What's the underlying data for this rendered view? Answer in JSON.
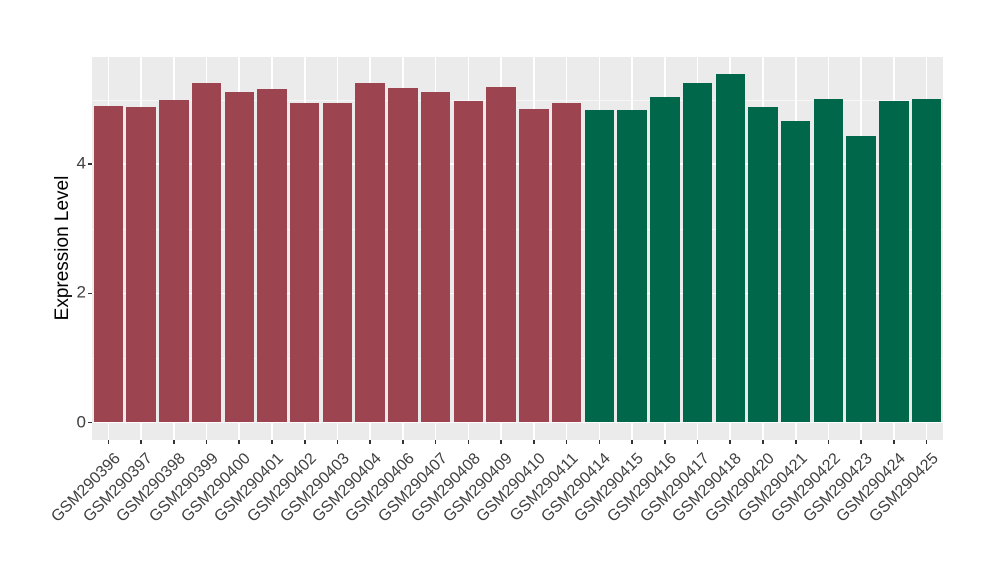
{
  "chart_data": {
    "type": "bar",
    "title": "",
    "xlabel": "",
    "ylabel": "Expression Level",
    "legend_position": "none",
    "grid": "on",
    "panel_background": "#EBEBEB",
    "gridline_color": "#FFFFFF",
    "axis_text_color": "#404040",
    "tick_mark_color": "#333333",
    "yticks": [
      0,
      2,
      4
    ],
    "ylim": [
      -0.28,
      5.66
    ],
    "bar_colors_used": [
      "#9C4450",
      "#00674B"
    ],
    "bars": [
      {
        "label": "GSM290396",
        "value": 4.9,
        "color": "#9C4450"
      },
      {
        "label": "GSM290397",
        "value": 4.88,
        "color": "#9C4450"
      },
      {
        "label": "GSM290398",
        "value": 4.99,
        "color": "#9C4450"
      },
      {
        "label": "GSM290399",
        "value": 5.25,
        "color": "#9C4450"
      },
      {
        "label": "GSM290400",
        "value": 5.12,
        "color": "#9C4450"
      },
      {
        "label": "GSM290401",
        "value": 5.16,
        "color": "#9C4450"
      },
      {
        "label": "GSM290402",
        "value": 4.95,
        "color": "#9C4450"
      },
      {
        "label": "GSM290403",
        "value": 4.95,
        "color": "#9C4450"
      },
      {
        "label": "GSM290404",
        "value": 5.25,
        "color": "#9C4450"
      },
      {
        "label": "GSM290406",
        "value": 5.18,
        "color": "#9C4450"
      },
      {
        "label": "GSM290407",
        "value": 5.12,
        "color": "#9C4450"
      },
      {
        "label": "GSM290408",
        "value": 4.98,
        "color": "#9C4450"
      },
      {
        "label": "GSM290409",
        "value": 5.2,
        "color": "#9C4450"
      },
      {
        "label": "GSM290410",
        "value": 4.86,
        "color": "#9C4450"
      },
      {
        "label": "GSM290411",
        "value": 4.95,
        "color": "#9C4450"
      },
      {
        "label": "GSM290414",
        "value": 4.84,
        "color": "#00674B"
      },
      {
        "label": "GSM290415",
        "value": 4.84,
        "color": "#00674B"
      },
      {
        "label": "GSM290416",
        "value": 5.04,
        "color": "#00674B"
      },
      {
        "label": "GSM290417",
        "value": 5.26,
        "color": "#00674B"
      },
      {
        "label": "GSM290418",
        "value": 5.4,
        "color": "#00674B"
      },
      {
        "label": "GSM290420",
        "value": 4.89,
        "color": "#00674B"
      },
      {
        "label": "GSM290421",
        "value": 4.67,
        "color": "#00674B"
      },
      {
        "label": "GSM290422",
        "value": 5.01,
        "color": "#00674B"
      },
      {
        "label": "GSM290423",
        "value": 4.43,
        "color": "#00674B"
      },
      {
        "label": "GSM290424",
        "value": 4.98,
        "color": "#00674B"
      },
      {
        "label": "GSM290425",
        "value": 5.01,
        "color": "#00674B"
      }
    ]
  }
}
